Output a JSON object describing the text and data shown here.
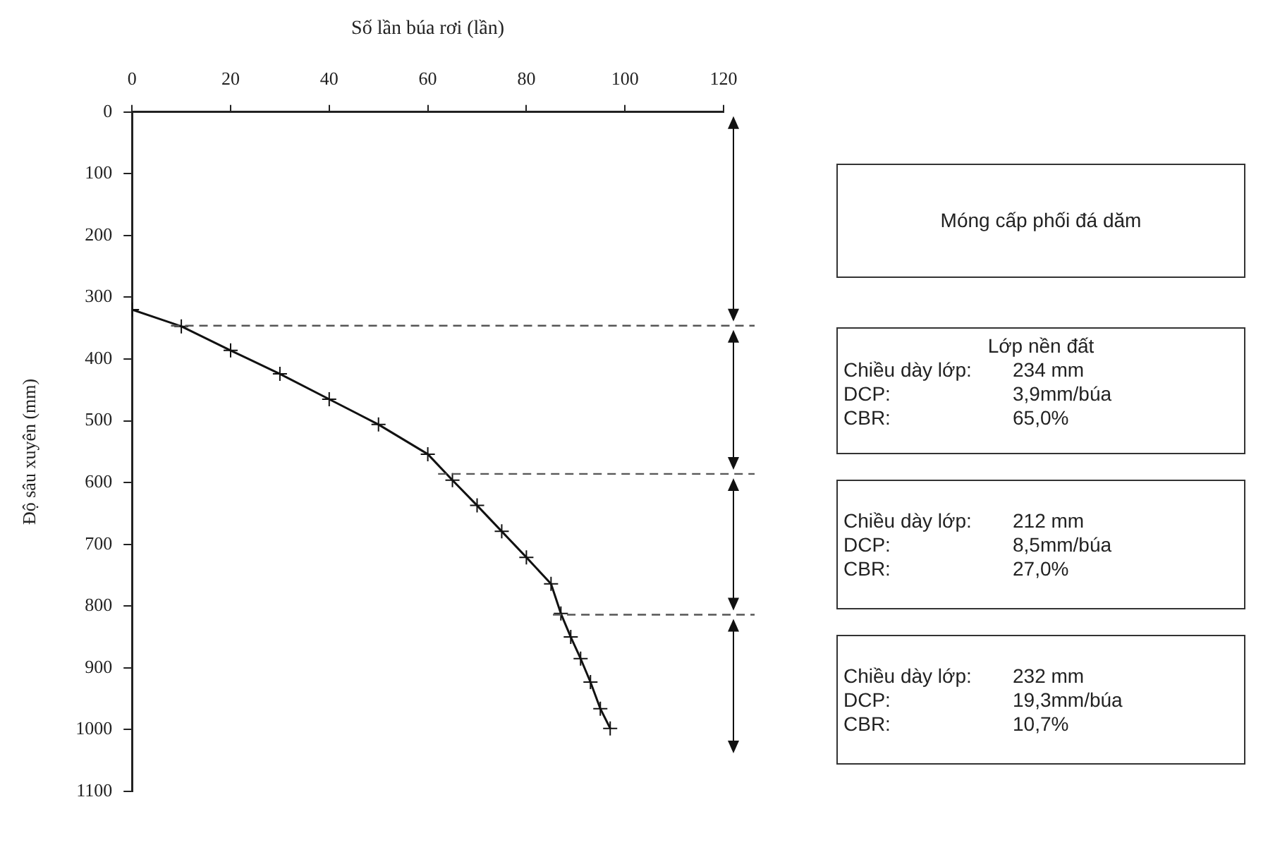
{
  "chart_data": {
    "type": "line",
    "xlabel": "Số lần búa rơi (lần)",
    "ylabel": "Độ sâu xuyên (mm)",
    "x": [
      0,
      10,
      20,
      30,
      40,
      50,
      60,
      65,
      70,
      75,
      80,
      85,
      87,
      89,
      91,
      93,
      95,
      97
    ],
    "values": [
      320,
      347,
      386,
      424,
      465,
      506,
      554,
      596,
      637,
      679,
      721,
      764,
      812,
      850,
      885,
      923,
      966,
      998
    ],
    "color": "#111111",
    "marker": "cross",
    "line_style": "solid",
    "grid": false,
    "legend": false,
    "xlim": [
      0,
      120
    ],
    "xticks": [
      0,
      20,
      40,
      60,
      80,
      100,
      120
    ],
    "ylim": [
      1100,
      0
    ],
    "yticks": [
      0,
      100,
      200,
      300,
      400,
      500,
      600,
      700,
      800,
      900,
      1000,
      1100
    ],
    "ref_lines": [
      {
        "axis": "y",
        "value": 346,
        "line_style": "dashed",
        "color": "#555555"
      },
      {
        "axis": "y",
        "value": 586,
        "line_style": "dashed",
        "color": "#555555"
      },
      {
        "axis": "y",
        "value": 814,
        "line_style": "dashed",
        "color": "#555555"
      }
    ],
    "annotations": [
      "Móng cấp phối đá dăm",
      "Lớp nền đất\nChiều dày lớp:\t234 mm\nDCP:\t3,9mm/búa\nCBR:\t65,0%",
      "Chiều dày lớp:\t212 mm\nDCP:\t8,5mm/búa\nCBR:\t27,0%",
      "Chiều dày lớp:\t232 mm\nDCP:\t19,3mm/búa\nCBR:\t10,7%"
    ]
  }
}
